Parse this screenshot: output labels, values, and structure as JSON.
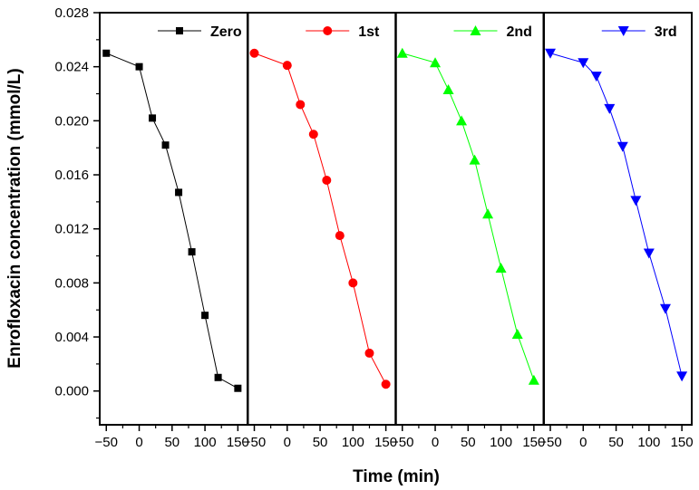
{
  "chart_data": {
    "type": "line",
    "panel_layout": "four side-by-side panels sharing y-axis",
    "ylabel": "Enrofloxacin concentration (mmol/L)",
    "xlabel": "Time (min)",
    "ylim": [
      -0.0025,
      0.028
    ],
    "yticks": [
      "0.000",
      "0.004",
      "0.008",
      "0.012",
      "0.016",
      "0.020",
      "0.024",
      "0.028"
    ],
    "ytick_values": [
      0.0,
      0.004,
      0.008,
      0.012,
      0.016,
      0.02,
      0.024,
      0.028
    ],
    "xlim": [
      -60,
      165
    ],
    "xticks": [
      "−50",
      "0",
      "50",
      "100",
      "150"
    ],
    "xtick_values": [
      -50,
      0,
      50,
      100,
      150
    ],
    "legend_position": "top-right of each panel",
    "series": [
      {
        "name": "Zero",
        "color": "#000000",
        "marker": "square",
        "x": [
          -50,
          0,
          20,
          40,
          60,
          80,
          100,
          120,
          150
        ],
        "y": [
          0.025,
          0.024,
          0.0202,
          0.0182,
          0.0147,
          0.0103,
          0.0056,
          0.001,
          0.0002
        ]
      },
      {
        "name": "1st",
        "color": "#ff0000",
        "marker": "circle",
        "x": [
          -50,
          0,
          20,
          40,
          60,
          80,
          100,
          125,
          150
        ],
        "y": [
          0.025,
          0.0241,
          0.0212,
          0.019,
          0.0156,
          0.0115,
          0.008,
          0.0028,
          0.0005
        ]
      },
      {
        "name": "2nd",
        "color": "#00ff00",
        "marker": "triangle-up",
        "x": [
          -50,
          0,
          20,
          40,
          60,
          80,
          100,
          125,
          150
        ],
        "y": [
          0.025,
          0.0243,
          0.0223,
          0.02,
          0.0171,
          0.0131,
          0.0091,
          0.0042,
          0.0008
        ]
      },
      {
        "name": "3rd",
        "color": "#0000ff",
        "marker": "triangle-down",
        "x": [
          -50,
          0,
          20,
          40,
          60,
          80,
          100,
          125,
          150
        ],
        "y": [
          0.025,
          0.0243,
          0.0233,
          0.0209,
          0.0181,
          0.0141,
          0.0102,
          0.0061,
          0.0011
        ]
      }
    ]
  }
}
